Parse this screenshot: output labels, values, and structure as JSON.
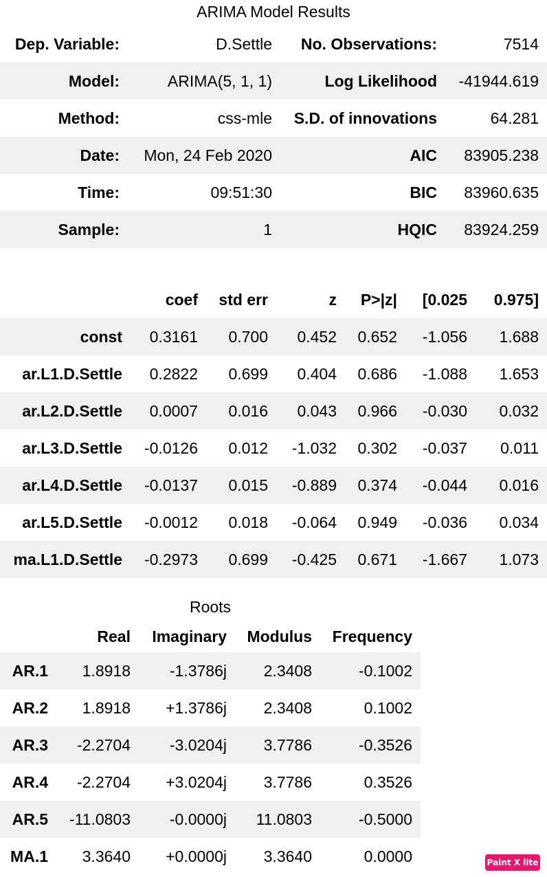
{
  "summary": {
    "title": "ARIMA Model Results",
    "rows": [
      {
        "k1": "Dep. Variable:",
        "v1": "D.Settle",
        "k2": "No. Observations:",
        "v2": "7514"
      },
      {
        "k1": "Model:",
        "v1": "ARIMA(5, 1, 1)",
        "k2": "Log Likelihood",
        "v2": "-41944.619"
      },
      {
        "k1": "Method:",
        "v1": "css-mle",
        "k2": "S.D. of innovations",
        "v2": "64.281"
      },
      {
        "k1": "Date:",
        "v1": "Mon, 24 Feb 2020",
        "k2": "AIC",
        "v2": "83905.238"
      },
      {
        "k1": "Time:",
        "v1": "09:51:30",
        "k2": "BIC",
        "v2": "83960.635"
      },
      {
        "k1": "Sample:",
        "v1": "1",
        "k2": "HQIC",
        "v2": "83924.259"
      }
    ]
  },
  "coef": {
    "headers": [
      "",
      "coef",
      "std err",
      "z",
      "P>|z|",
      "[0.025",
      "0.975]"
    ],
    "rows": [
      [
        "const",
        "0.3161",
        "0.700",
        "0.452",
        "0.652",
        "-1.056",
        "1.688"
      ],
      [
        "ar.L1.D.Settle",
        "0.2822",
        "0.699",
        "0.404",
        "0.686",
        "-1.088",
        "1.653"
      ],
      [
        "ar.L2.D.Settle",
        "0.0007",
        "0.016",
        "0.043",
        "0.966",
        "-0.030",
        "0.032"
      ],
      [
        "ar.L3.D.Settle",
        "-0.0126",
        "0.012",
        "-1.032",
        "0.302",
        "-0.037",
        "0.011"
      ],
      [
        "ar.L4.D.Settle",
        "-0.0137",
        "0.015",
        "-0.889",
        "0.374",
        "-0.044",
        "0.016"
      ],
      [
        "ar.L5.D.Settle",
        "-0.0012",
        "0.018",
        "-0.064",
        "0.949",
        "-0.036",
        "0.034"
      ],
      [
        "ma.L1.D.Settle",
        "-0.2973",
        "0.699",
        "-0.425",
        "0.671",
        "-1.667",
        "1.073"
      ]
    ]
  },
  "roots": {
    "title": "Roots",
    "headers": [
      "",
      "Real",
      "Imaginary",
      "Modulus",
      "Frequency"
    ],
    "rows": [
      [
        "AR.1",
        "1.8918",
        "-1.3786j",
        "2.3408",
        "-0.1002"
      ],
      [
        "AR.2",
        "1.8918",
        "+1.3786j",
        "2.3408",
        "0.1002"
      ],
      [
        "AR.3",
        "-2.2704",
        "-3.0204j",
        "3.7786",
        "-0.3526"
      ],
      [
        "AR.4",
        "-2.2704",
        "+3.0204j",
        "3.7786",
        "0.3526"
      ],
      [
        "AR.5",
        "-11.0803",
        "-0.0000j",
        "11.0803",
        "-0.5000"
      ],
      [
        "MA.1",
        "3.3640",
        "+0.0000j",
        "3.3640",
        "0.0000"
      ]
    ]
  },
  "watermark": {
    "label": "Paint X lite",
    "color": "#e8176e"
  }
}
